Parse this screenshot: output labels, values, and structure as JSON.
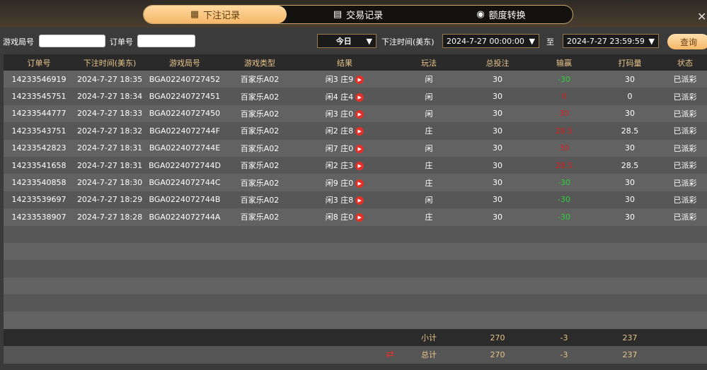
{
  "tabs": [
    {
      "label": "下注记录",
      "icon": "clipboard-icon",
      "active": true
    },
    {
      "label": "交易记录",
      "icon": "document-icon"
    },
    {
      "label": "额度转换",
      "icon": "coins-icon"
    }
  ],
  "filters": {
    "round_label": "游戏局号",
    "round_value": "",
    "order_label": "订单号",
    "order_value": "",
    "period": "今日",
    "time_label": "下注时间(美东)",
    "start": "2024-7-27 00:00:00",
    "to": "至",
    "end": "2024-7-27 23:59:59",
    "query": "查询"
  },
  "columns": [
    "订单号",
    "下注时间(美东)",
    "游戏局号",
    "游戏类型",
    "结果",
    "玩法",
    "总投注",
    "输赢",
    "打码量",
    "状态"
  ],
  "rows": [
    [
      "14233546919",
      "2024-7-27 18:35",
      "BGA02240727452",
      "百家乐A02",
      "闲3 庄9",
      "闲",
      "30",
      "-30",
      "30",
      "已派彩"
    ],
    [
      "14233545751",
      "2024-7-27 18:34",
      "BGA02240727451",
      "百家乐A02",
      "闲4 庄4",
      "闲",
      "30",
      "0",
      "0",
      "已派彩"
    ],
    [
      "14233544777",
      "2024-7-27 18:33",
      "BGA02240727450",
      "百家乐A02",
      "闲3 庄0",
      "闲",
      "30",
      "30",
      "30",
      "已派彩"
    ],
    [
      "14233543751",
      "2024-7-27 18:32",
      "BGA0224072744F",
      "百家乐A02",
      "闲2 庄8",
      "庄",
      "30",
      "28.5",
      "28.5",
      "已派彩"
    ],
    [
      "14233542823",
      "2024-7-27 18:31",
      "BGA0224072744E",
      "百家乐A02",
      "闲7 庄0",
      "闲",
      "30",
      "30",
      "30",
      "已派彩"
    ],
    [
      "14233541658",
      "2024-7-27 18:31",
      "BGA0224072744D",
      "百家乐A02",
      "闲2 庄3",
      "庄",
      "30",
      "28.5",
      "28.5",
      "已派彩"
    ],
    [
      "14233540858",
      "2024-7-27 18:30",
      "BGA0224072744C",
      "百家乐A02",
      "闲9 庄0",
      "庄",
      "30",
      "-30",
      "30",
      "已派彩"
    ],
    [
      "14233539697",
      "2024-7-27 18:29",
      "BGA0224072744B",
      "百家乐A02",
      "闲3 庄8",
      "闲",
      "30",
      "-30",
      "30",
      "已派彩"
    ],
    [
      "14233538907",
      "2024-7-27 18:28",
      "BGA0224072744A",
      "百家乐A02",
      "闲8 庄0",
      "庄",
      "30",
      "-30",
      "30",
      "已派彩"
    ]
  ],
  "subtotal": {
    "label": "小计",
    "bet": "270",
    "win": "-3",
    "valid": "237"
  },
  "total": {
    "label": "总计",
    "bet": "270",
    "win": "-3",
    "valid": "237"
  },
  "colors": {
    "accent": "#f5b868",
    "loss": "#2fcf3a",
    "win": "#d02020"
  }
}
